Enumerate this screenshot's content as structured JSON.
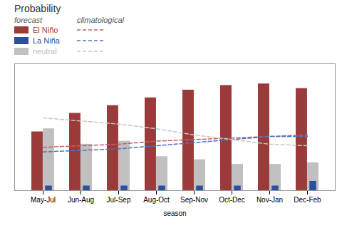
{
  "chart_data": {
    "type": "bar",
    "title": "Probability",
    "xlabel": "season",
    "categories": [
      "May-Jul",
      "Jun-Aug",
      "Jul-Sep",
      "Aug-Oct",
      "Sep-Nov",
      "Oct-Dec",
      "Nov-Jan",
      "Dec-Feb"
    ],
    "series": [
      {
        "name": "El Niño",
        "type": "bar",
        "color": "#9B3A3A",
        "values": [
          0.38,
          0.5,
          0.55,
          0.6,
          0.65,
          0.68,
          0.69,
          0.66
        ]
      },
      {
        "name": "neutral",
        "type": "bar",
        "color": "#C0C0C0",
        "values": [
          0.4,
          0.3,
          0.32,
          0.22,
          0.2,
          0.17,
          0.17,
          0.18
        ]
      },
      {
        "name": "La Niña",
        "type": "bar",
        "color": "#2B4FA0",
        "values": [
          0.03,
          0.03,
          0.03,
          0.03,
          0.03,
          0.03,
          0.03,
          0.06
        ]
      },
      {
        "name": "El Niño",
        "type": "line",
        "line_style": "dashed",
        "color": "#C06060",
        "values": [
          0.28,
          0.29,
          0.3,
          0.32,
          0.33,
          0.34,
          0.35,
          0.36
        ]
      },
      {
        "name": "La Niña",
        "type": "line",
        "line_style": "dashed",
        "color": "#5070C0",
        "values": [
          0.25,
          0.26,
          0.27,
          0.29,
          0.31,
          0.33,
          0.35,
          0.35
        ]
      },
      {
        "name": "neutral",
        "type": "line",
        "line_style": "dashed",
        "color": "#C8C8C8",
        "values": [
          0.47,
          0.45,
          0.43,
          0.4,
          0.36,
          0.33,
          0.3,
          0.29
        ]
      }
    ],
    "ylim": [
      0,
      0.82
    ],
    "yticks": [],
    "tick_labels": "x",
    "grid": false,
    "legend": "top left",
    "annotations": [
      "forecast",
      "climatological"
    ]
  }
}
